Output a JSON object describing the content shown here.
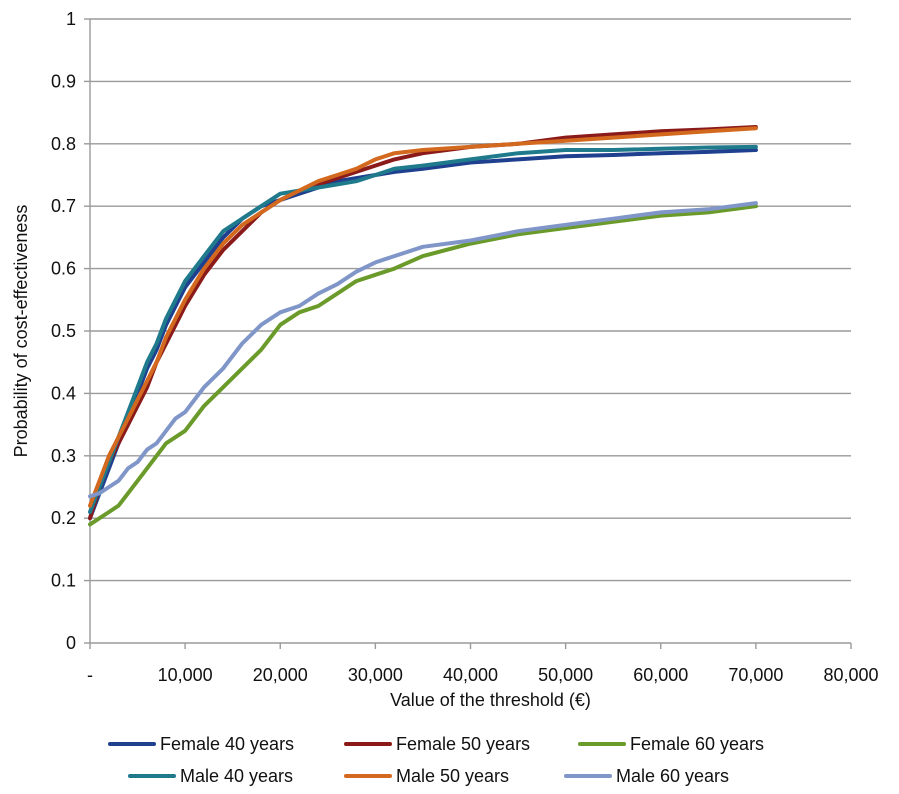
{
  "chart_data": {
    "type": "line",
    "title": "",
    "xlabel": "Value of the threshold (€)",
    "ylabel": "Probability of cost-effectiveness",
    "xlim": [
      0,
      80000
    ],
    "ylim": [
      0,
      1
    ],
    "grid": true,
    "legend_position": "bottom",
    "x_ticks": [
      {
        "value": 0,
        "label": "-"
      },
      {
        "value": 10000,
        "label": "10,000"
      },
      {
        "value": 20000,
        "label": "20,000"
      },
      {
        "value": 30000,
        "label": "30,000"
      },
      {
        "value": 40000,
        "label": "40,000"
      },
      {
        "value": 50000,
        "label": "50,000"
      },
      {
        "value": 60000,
        "label": "60,000"
      },
      {
        "value": 70000,
        "label": "70,000"
      },
      {
        "value": 80000,
        "label": "80,000"
      }
    ],
    "y_ticks": [
      {
        "value": 0,
        "label": "0"
      },
      {
        "value": 0.1,
        "label": "0.1"
      },
      {
        "value": 0.2,
        "label": "0.2"
      },
      {
        "value": 0.3,
        "label": "0.3"
      },
      {
        "value": 0.4,
        "label": "0.4"
      },
      {
        "value": 0.5,
        "label": "0.5"
      },
      {
        "value": 0.6,
        "label": "0.6"
      },
      {
        "value": 0.7,
        "label": "0.7"
      },
      {
        "value": 0.8,
        "label": "0.8"
      },
      {
        "value": 0.9,
        "label": "0.9"
      },
      {
        "value": 1,
        "label": "1"
      }
    ],
    "x": [
      0,
      1000,
      2000,
      3000,
      4000,
      5000,
      6000,
      7000,
      8000,
      9000,
      10000,
      12000,
      14000,
      16000,
      18000,
      20000,
      22000,
      24000,
      26000,
      28000,
      30000,
      32000,
      35000,
      40000,
      45000,
      50000,
      55000,
      60000,
      65000,
      70000
    ],
    "series": [
      {
        "name": "Female 40 years",
        "color": "#1f3f8f",
        "values": [
          0.2,
          0.24,
          0.28,
          0.32,
          0.36,
          0.4,
          0.44,
          0.47,
          0.51,
          0.54,
          0.57,
          0.61,
          0.65,
          0.68,
          0.7,
          0.71,
          0.72,
          0.73,
          0.74,
          0.745,
          0.75,
          0.755,
          0.76,
          0.77,
          0.775,
          0.78,
          0.782,
          0.785,
          0.787,
          0.79
        ]
      },
      {
        "name": "Female 50 years",
        "color": "#8b1a1a",
        "values": [
          0.2,
          0.25,
          0.29,
          0.32,
          0.35,
          0.38,
          0.41,
          0.45,
          0.48,
          0.51,
          0.54,
          0.59,
          0.63,
          0.66,
          0.69,
          0.71,
          0.725,
          0.735,
          0.745,
          0.755,
          0.765,
          0.775,
          0.785,
          0.795,
          0.8,
          0.81,
          0.815,
          0.82,
          0.823,
          0.827
        ]
      },
      {
        "name": "Female 60 years",
        "color": "#6a9a2a",
        "values": [
          0.19,
          0.2,
          0.21,
          0.22,
          0.24,
          0.26,
          0.28,
          0.3,
          0.32,
          0.33,
          0.34,
          0.38,
          0.41,
          0.44,
          0.47,
          0.51,
          0.53,
          0.54,
          0.56,
          0.58,
          0.59,
          0.6,
          0.62,
          0.64,
          0.655,
          0.665,
          0.675,
          0.685,
          0.69,
          0.7
        ]
      },
      {
        "name": "Male 40 years",
        "color": "#1f7a8c",
        "values": [
          0.21,
          0.25,
          0.29,
          0.33,
          0.37,
          0.41,
          0.45,
          0.48,
          0.52,
          0.55,
          0.58,
          0.62,
          0.66,
          0.68,
          0.7,
          0.72,
          0.725,
          0.73,
          0.735,
          0.74,
          0.75,
          0.76,
          0.765,
          0.775,
          0.785,
          0.79,
          0.79,
          0.792,
          0.794,
          0.795
        ]
      },
      {
        "name": "Male 50 years",
        "color": "#d2691e",
        "values": [
          0.22,
          0.26,
          0.3,
          0.33,
          0.36,
          0.39,
          0.42,
          0.45,
          0.49,
          0.52,
          0.55,
          0.6,
          0.64,
          0.67,
          0.69,
          0.71,
          0.725,
          0.74,
          0.75,
          0.76,
          0.775,
          0.785,
          0.79,
          0.795,
          0.8,
          0.805,
          0.81,
          0.815,
          0.82,
          0.825
        ]
      },
      {
        "name": "Male 60 years",
        "color": "#8096c8",
        "values": [
          0.235,
          0.24,
          0.25,
          0.26,
          0.28,
          0.29,
          0.31,
          0.32,
          0.34,
          0.36,
          0.37,
          0.41,
          0.44,
          0.48,
          0.51,
          0.53,
          0.54,
          0.56,
          0.575,
          0.595,
          0.61,
          0.62,
          0.635,
          0.645,
          0.66,
          0.67,
          0.68,
          0.69,
          0.695,
          0.705
        ]
      }
    ]
  }
}
